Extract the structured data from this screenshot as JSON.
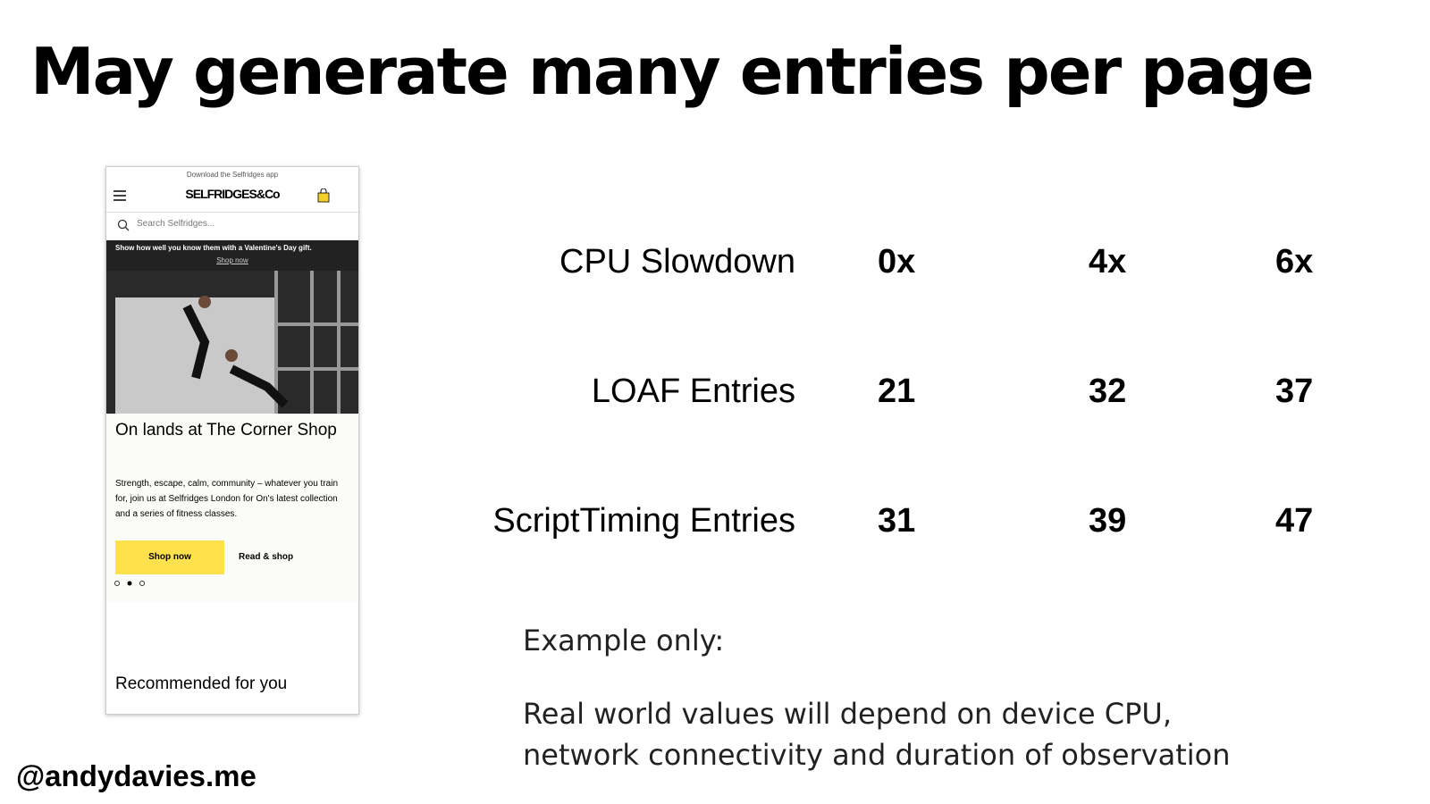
{
  "header": {
    "title": "May generate many entries per page"
  },
  "phone": {
    "app_banner": "Download the Selfridges app",
    "logo": "SELFRIDGES&Co",
    "search": "Search Selfridges...",
    "promo": "Show how well you know them with a Valentine's Day gift.",
    "promo_link": "Shop now",
    "heading": "On lands at The Corner Shop",
    "body": "Strength, escape, calm, community – whatever you train for, join us at Selfridges London for On's latest collection and a series of fitness classes.",
    "button_primary": "Shop now",
    "button_secondary": "Read & shop",
    "recommended": "Recommended for you"
  },
  "table": {
    "rows": [
      [
        "CPU Slowdown",
        "0x",
        "4x",
        "6x"
      ],
      [
        "LOAF Entries",
        "21",
        "32",
        "37"
      ],
      [
        "ScriptTiming Entries",
        "31",
        "39",
        "47"
      ]
    ]
  },
  "notes": {
    "heading": "Example only:",
    "text": "Real world values will depend on device CPU, network connectivity and duration of observation"
  },
  "footer": {
    "handle": "@andydavies.me"
  }
}
